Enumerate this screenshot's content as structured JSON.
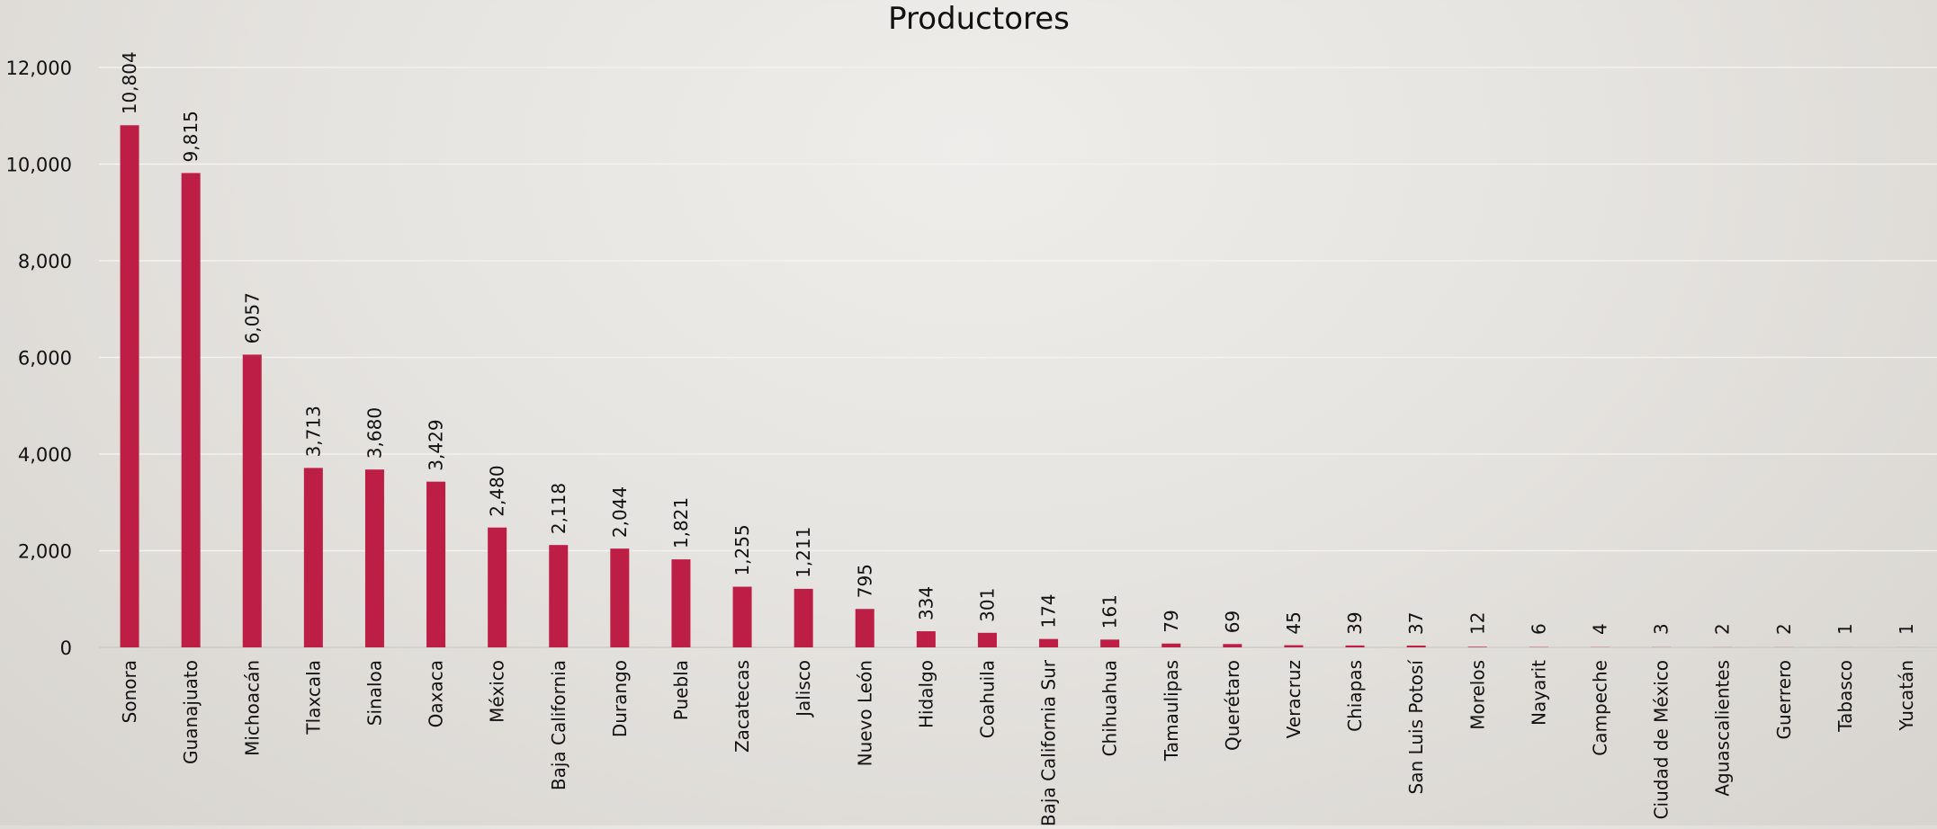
{
  "chart_data": {
    "type": "bar",
    "title": "Productores",
    "xlabel": "",
    "ylabel": "",
    "ylim": [
      0,
      12000
    ],
    "yticks": [
      0,
      2000,
      4000,
      6000,
      8000,
      10000,
      12000
    ],
    "ytick_labels": [
      "0",
      "2,000",
      "4,000",
      "6,000",
      "8,000",
      "10,000",
      "12,000"
    ],
    "grid": true,
    "legend": "none",
    "bar_color": "#bd1e46",
    "categories": [
      "Sonora",
      "Guanajuato",
      "Michoacán",
      "Tlaxcala",
      "Sinaloa",
      "Oaxaca",
      "México",
      "Baja California",
      "Durango",
      "Puebla",
      "Zacatecas",
      "Jalisco",
      "Nuevo León",
      "Hidalgo",
      "Coahuila",
      "Baja California Sur",
      "Chihuahua",
      "Tamaulipas",
      "Querétaro",
      "Veracruz",
      "Chiapas",
      "San Luis Potosí",
      "Morelos",
      "Nayarit",
      "Campeche",
      "Ciudad de México",
      "Aguascalientes",
      "Guerrero",
      "Tabasco",
      "Yucatán"
    ],
    "values": [
      10804,
      9815,
      6057,
      3713,
      3680,
      3429,
      2480,
      2118,
      2044,
      1821,
      1255,
      1211,
      795,
      334,
      301,
      174,
      161,
      79,
      69,
      45,
      39,
      37,
      12,
      6,
      4,
      3,
      2,
      2,
      1,
      1
    ],
    "data_labels": [
      "10,804",
      "9,815",
      "6,057",
      "3,713",
      "3,680",
      "3,429",
      "2,480",
      "2,118",
      "2,044",
      "1,821",
      "1,255",
      "1,211",
      "795",
      "334",
      "301",
      "174",
      "161",
      "79",
      "69",
      "45",
      "39",
      "37",
      "12",
      "6",
      "4",
      "3",
      "2",
      "2",
      "1",
      "1"
    ]
  }
}
